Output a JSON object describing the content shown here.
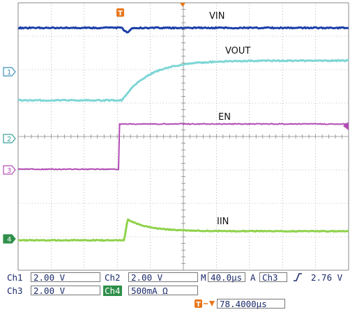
{
  "colors": {
    "ch1": "#7fd6d6",
    "ch2": "#b24cb5",
    "ch3": "#2f8f4a",
    "ch4": "#8fd24c",
    "vin": "#1b3fa8",
    "grid": "#8a8a8a"
  },
  "icons": {
    "trigger": "trigger-T-icon",
    "edge": "rising-edge-icon"
  },
  "traces": {
    "vin_label": "VIN",
    "vout_label": "VOUT",
    "en_label": "EN",
    "iin_label": "IIN"
  },
  "markers": {
    "ch1": "1",
    "ch2": "2",
    "ch3": "3",
    "ch4": "4",
    "trigger": "T"
  },
  "readout": {
    "ch1_name": "Ch1",
    "ch1_scale": "2.00 V",
    "ch2_name": "Ch2",
    "ch2_scale": "2.00 V",
    "time_label": "M",
    "time_scale": "40.0µs",
    "acq_label": "A",
    "trig_channel": "Ch3",
    "trig_level": "2.76 V",
    "ch3_name": "Ch3",
    "ch3_scale": "2.00 V",
    "ch4_name": "Ch4",
    "ch4_scale": "500mA Ω",
    "trig_position": "78.4000µs"
  }
}
